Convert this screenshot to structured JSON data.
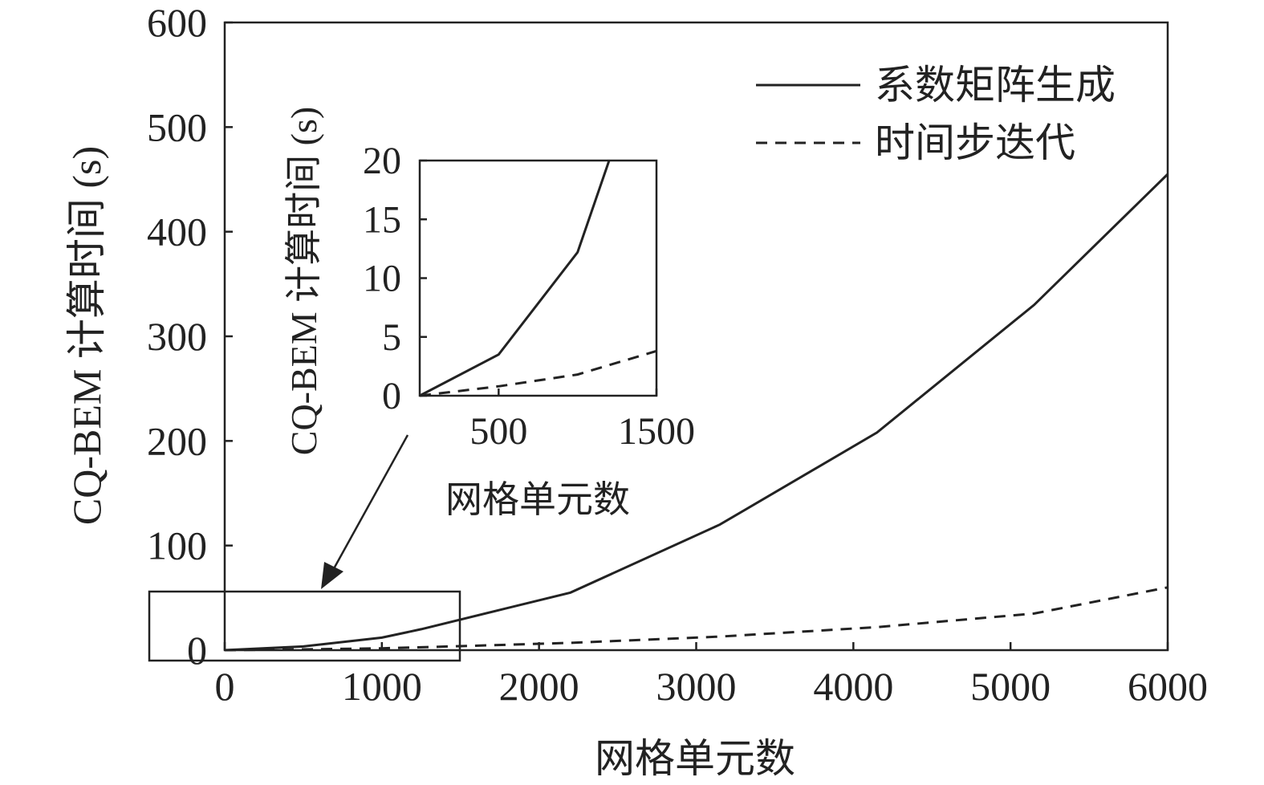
{
  "chart_data": [
    {
      "type": "line",
      "title": "",
      "xlabel": "网格单元数",
      "ylabel": "CQ-BEM 计算时间 (s)",
      "xlim": [
        0,
        6000
      ],
      "ylim": [
        0,
        600
      ],
      "xticks": [
        0,
        1000,
        2000,
        3000,
        4000,
        5000,
        6000
      ],
      "yticks": [
        0,
        100,
        200,
        300,
        400,
        500,
        600
      ],
      "grid": false,
      "legend_position": "top-right",
      "series": [
        {
          "name": "系数矩阵生成",
          "style": "solid",
          "x": [
            0,
            500,
            1000,
            1250,
            2200,
            3150,
            4150,
            5150,
            6000
          ],
          "y": [
            0,
            3.5,
            12,
            20,
            55,
            120,
            208,
            330,
            455
          ]
        },
        {
          "name": "时间步迭代",
          "style": "dashed",
          "x": [
            0,
            500,
            1000,
            1500,
            2200,
            3150,
            4150,
            5150,
            6000
          ],
          "y": [
            0,
            0.8,
            1.8,
            3.8,
            7,
            13,
            22,
            35,
            60
          ]
        }
      ]
    },
    {
      "type": "line",
      "title": "",
      "xlabel": "网格单元数",
      "ylabel": "CQ-BEM 计算时间 (s)",
      "xlim": [
        0,
        1500
      ],
      "ylim": [
        0,
        20
      ],
      "xticks": [
        500,
        1500
      ],
      "yticks": [
        0,
        5,
        10,
        15,
        20
      ],
      "grid": false,
      "series": [
        {
          "name": "系数矩阵生成",
          "style": "solid",
          "x": [
            0,
            500,
            1000,
            1200
          ],
          "y": [
            0,
            3.5,
            12.2,
            20
          ]
        },
        {
          "name": "时间步迭代",
          "style": "dashed",
          "x": [
            0,
            500,
            1000,
            1500
          ],
          "y": [
            0,
            0.8,
            1.8,
            3.8
          ]
        }
      ]
    }
  ]
}
